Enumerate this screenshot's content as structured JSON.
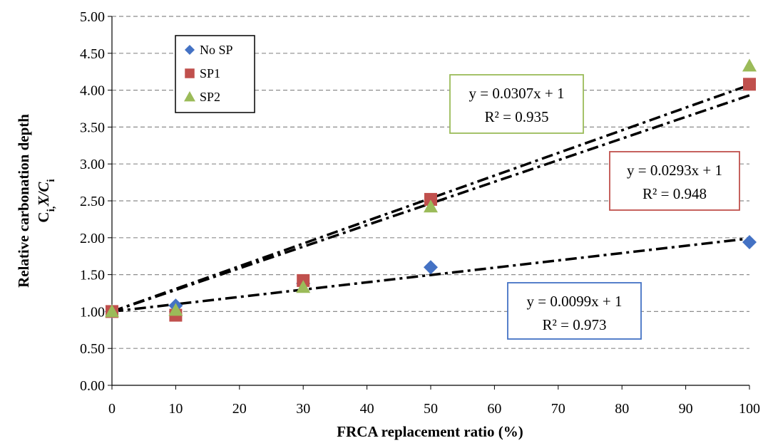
{
  "chart_data": {
    "type": "scatter",
    "xlabel": "FRCA replacement ratio (%)",
    "ylabel_line1": "Relative carbonation depth",
    "ylabel_line2": "Ci,X/Ci",
    "xlim": [
      0,
      100
    ],
    "ylim": [
      0,
      5
    ],
    "x_ticks": [
      0,
      10,
      20,
      30,
      40,
      50,
      60,
      70,
      80,
      90,
      100
    ],
    "y_ticks": [
      "0.00",
      "0.50",
      "1.00",
      "1.50",
      "2.00",
      "2.50",
      "3.00",
      "3.50",
      "4.00",
      "4.50",
      "5.00"
    ],
    "grid": "horizontal dashed",
    "legend_position": "top-left",
    "series": [
      {
        "name": "No SP",
        "marker": "diamond",
        "color": "#4472C4",
        "x": [
          0,
          10,
          30,
          50,
          100
        ],
        "y": [
          1.0,
          1.08,
          1.38,
          1.6,
          1.94
        ]
      },
      {
        "name": "SP1",
        "marker": "square",
        "color": "#C0504D",
        "x": [
          0,
          10,
          30,
          50,
          100
        ],
        "y": [
          1.0,
          0.95,
          1.42,
          2.52,
          4.08
        ]
      },
      {
        "name": "SP2",
        "marker": "triangle",
        "color": "#9BBB59",
        "x": [
          0,
          10,
          30,
          50,
          100
        ],
        "y": [
          1.0,
          1.02,
          1.33,
          2.42,
          4.33
        ]
      }
    ],
    "trendlines": [
      {
        "slope": 0.0099,
        "intercept": 1,
        "color": "#4472C4",
        "equation": "y = 0.0099x + 1",
        "r2": "R² = 0.973"
      },
      {
        "slope": 0.0293,
        "intercept": 1,
        "color": "#C0504D",
        "equation": "y = 0.0293x + 1",
        "r2": "R² = 0.948"
      },
      {
        "slope": 0.0307,
        "intercept": 1,
        "color": "#9BBB59",
        "equation": "y = 0.0307x + 1",
        "r2": "R² = 0.935"
      }
    ]
  }
}
